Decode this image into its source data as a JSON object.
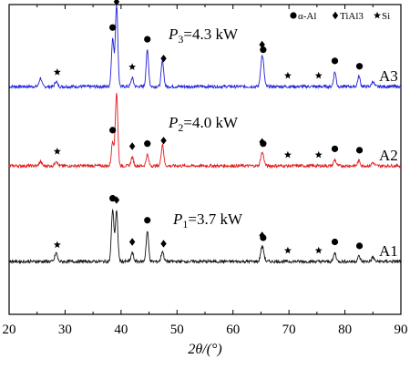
{
  "chart_data": {
    "type": "line",
    "xlabel": "2θ/(°)",
    "xlim": [
      20,
      90
    ],
    "x_ticks": [
      "20",
      "30",
      "40",
      "50",
      "60",
      "70",
      "80",
      "90"
    ],
    "legend": {
      "placement": "top-right",
      "entries": [
        {
          "symbol": "circle",
          "label": "α-Al"
        },
        {
          "symbol": "diamond",
          "label": "TiAl3"
        },
        {
          "symbol": "star",
          "label": "Si"
        }
      ]
    },
    "series": [
      {
        "name": "A3",
        "power_label_prefix": "P",
        "power_label_sub": "3",
        "power_label_value": "=4.3 kW",
        "color": "#1f1fd8",
        "baseline": 0,
        "peaks": [
          {
            "x": 25.6,
            "h": 0.1
          },
          {
            "x": 28.4,
            "h": 0.06
          },
          {
            "x": 38.5,
            "h": 0.55
          },
          {
            "x": 39.2,
            "h": 0.95
          },
          {
            "x": 42.0,
            "h": 0.1
          },
          {
            "x": 44.7,
            "h": 0.42
          },
          {
            "x": 47.4,
            "h": 0.3
          },
          {
            "x": 65.1,
            "h": 0.25
          },
          {
            "x": 65.4,
            "h": 0.2
          },
          {
            "x": 78.2,
            "h": 0.17
          },
          {
            "x": 82.5,
            "h": 0.12
          },
          {
            "x": 85.0,
            "h": 0.06
          }
        ],
        "markers": [
          {
            "x": 28.6,
            "symbol": "star"
          },
          {
            "x": 38.5,
            "symbol": "circle"
          },
          {
            "x": 39.2,
            "symbol": "diamond"
          },
          {
            "x": 42.0,
            "symbol": "star"
          },
          {
            "x": 44.7,
            "symbol": "circle"
          },
          {
            "x": 47.6,
            "symbol": "diamond"
          },
          {
            "x": 65.2,
            "symbol": "diamond"
          },
          {
            "x": 65.4,
            "symbol": "circle"
          },
          {
            "x": 69.8,
            "symbol": "star"
          },
          {
            "x": 75.3,
            "symbol": "star"
          },
          {
            "x": 78.2,
            "symbol": "circle"
          },
          {
            "x": 82.6,
            "symbol": "circle"
          }
        ]
      },
      {
        "name": "A2",
        "power_label_prefix": "P",
        "power_label_sub": "2",
        "power_label_value": "=4.0 kW",
        "color": "#e21c1c",
        "baseline": 0,
        "peaks": [
          {
            "x": 25.6,
            "h": 0.05
          },
          {
            "x": 28.4,
            "h": 0.06
          },
          {
            "x": 38.5,
            "h": 0.28
          },
          {
            "x": 39.2,
            "h": 0.85
          },
          {
            "x": 42.0,
            "h": 0.1
          },
          {
            "x": 44.7,
            "h": 0.13
          },
          {
            "x": 47.4,
            "h": 0.25
          },
          {
            "x": 65.1,
            "h": 0.1
          },
          {
            "x": 65.4,
            "h": 0.09
          },
          {
            "x": 78.2,
            "h": 0.07
          },
          {
            "x": 82.5,
            "h": 0.06
          },
          {
            "x": 85.0,
            "h": 0.04
          }
        ],
        "markers": [
          {
            "x": 28.6,
            "symbol": "star"
          },
          {
            "x": 38.5,
            "symbol": "circle"
          },
          {
            "x": 42.0,
            "symbol": "diamond"
          },
          {
            "x": 44.7,
            "symbol": "circle"
          },
          {
            "x": 47.6,
            "symbol": "diamond"
          },
          {
            "x": 65.2,
            "symbol": "diamond"
          },
          {
            "x": 65.4,
            "symbol": "circle"
          },
          {
            "x": 69.8,
            "symbol": "star"
          },
          {
            "x": 75.3,
            "symbol": "star"
          },
          {
            "x": 78.2,
            "symbol": "circle"
          },
          {
            "x": 82.6,
            "symbol": "circle"
          }
        ]
      },
      {
        "name": "A1",
        "power_label_prefix": "P",
        "power_label_sub": "1",
        "power_label_value": "=3.7 kW",
        "color": "#111111",
        "baseline": 0,
        "peaks": [
          {
            "x": 28.4,
            "h": 0.1
          },
          {
            "x": 38.5,
            "h": 0.6
          },
          {
            "x": 39.2,
            "h": 0.58
          },
          {
            "x": 42.0,
            "h": 0.1
          },
          {
            "x": 44.7,
            "h": 0.35
          },
          {
            "x": 47.4,
            "h": 0.12
          },
          {
            "x": 65.1,
            "h": 0.12
          },
          {
            "x": 65.4,
            "h": 0.1
          },
          {
            "x": 78.2,
            "h": 0.1
          },
          {
            "x": 82.5,
            "h": 0.06
          },
          {
            "x": 85.0,
            "h": 0.05
          }
        ],
        "markers": [
          {
            "x": 28.6,
            "symbol": "star"
          },
          {
            "x": 38.5,
            "symbol": "circle"
          },
          {
            "x": 39.2,
            "symbol": "diamond"
          },
          {
            "x": 42.0,
            "symbol": "diamond"
          },
          {
            "x": 44.7,
            "symbol": "circle"
          },
          {
            "x": 47.6,
            "symbol": "diamond"
          },
          {
            "x": 65.2,
            "symbol": "diamond"
          },
          {
            "x": 65.4,
            "symbol": "circle"
          },
          {
            "x": 69.8,
            "symbol": "star"
          },
          {
            "x": 75.3,
            "symbol": "star"
          },
          {
            "x": 78.2,
            "symbol": "circle"
          },
          {
            "x": 82.6,
            "symbol": "circle"
          }
        ]
      }
    ],
    "grid": false
  }
}
